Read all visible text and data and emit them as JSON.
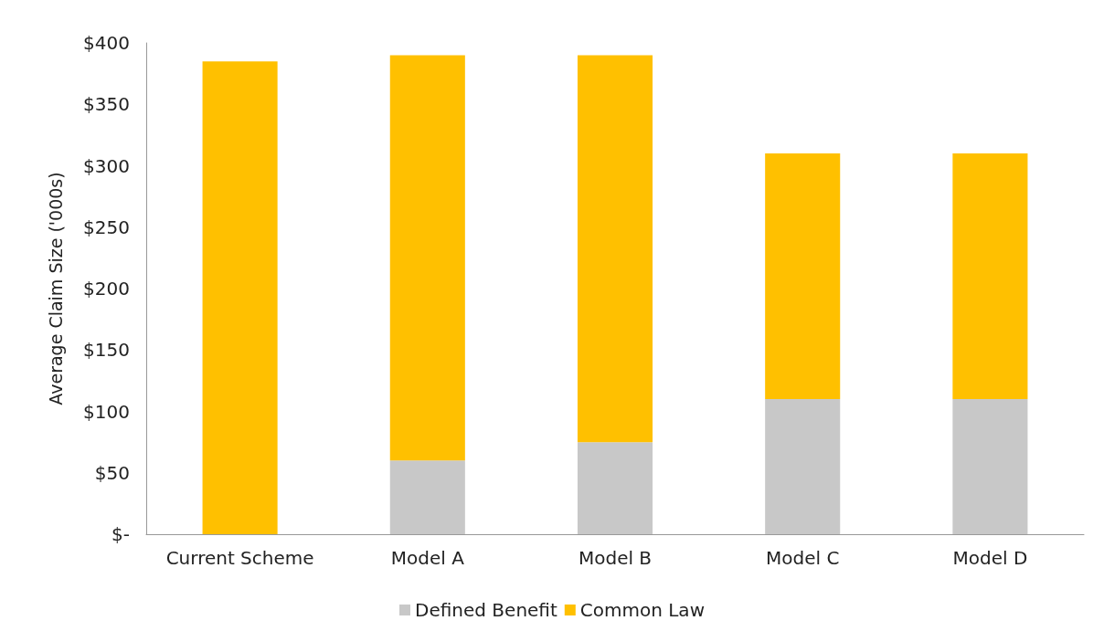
{
  "chart_data": {
    "type": "bar",
    "stacked": true,
    "ylabel": "Average Claim Size ('000s)",
    "categories": [
      "Current Scheme",
      "Model A",
      "Model B",
      "Model C",
      "Model D"
    ],
    "series": [
      {
        "name": "Defined Benefit",
        "color": "#c8c8c8",
        "values": [
          0,
          60,
          75,
          110,
          110
        ]
      },
      {
        "name": "Common Law",
        "color": "#ffc000",
        "values": [
          385,
          330,
          315,
          200,
          200
        ]
      }
    ],
    "ylim": [
      0,
      400
    ],
    "yticks": [
      {
        "value": 0,
        "label": "$-"
      },
      {
        "value": 50,
        "label": "$50"
      },
      {
        "value": 100,
        "label": "$100"
      },
      {
        "value": 150,
        "label": "$150"
      },
      {
        "value": 200,
        "label": "$200"
      },
      {
        "value": 250,
        "label": "$250"
      },
      {
        "value": 300,
        "label": "$300"
      },
      {
        "value": 350,
        "label": "$350"
      },
      {
        "value": 400,
        "label": "$400"
      }
    ],
    "grid": false,
    "legend": "bottom"
  }
}
